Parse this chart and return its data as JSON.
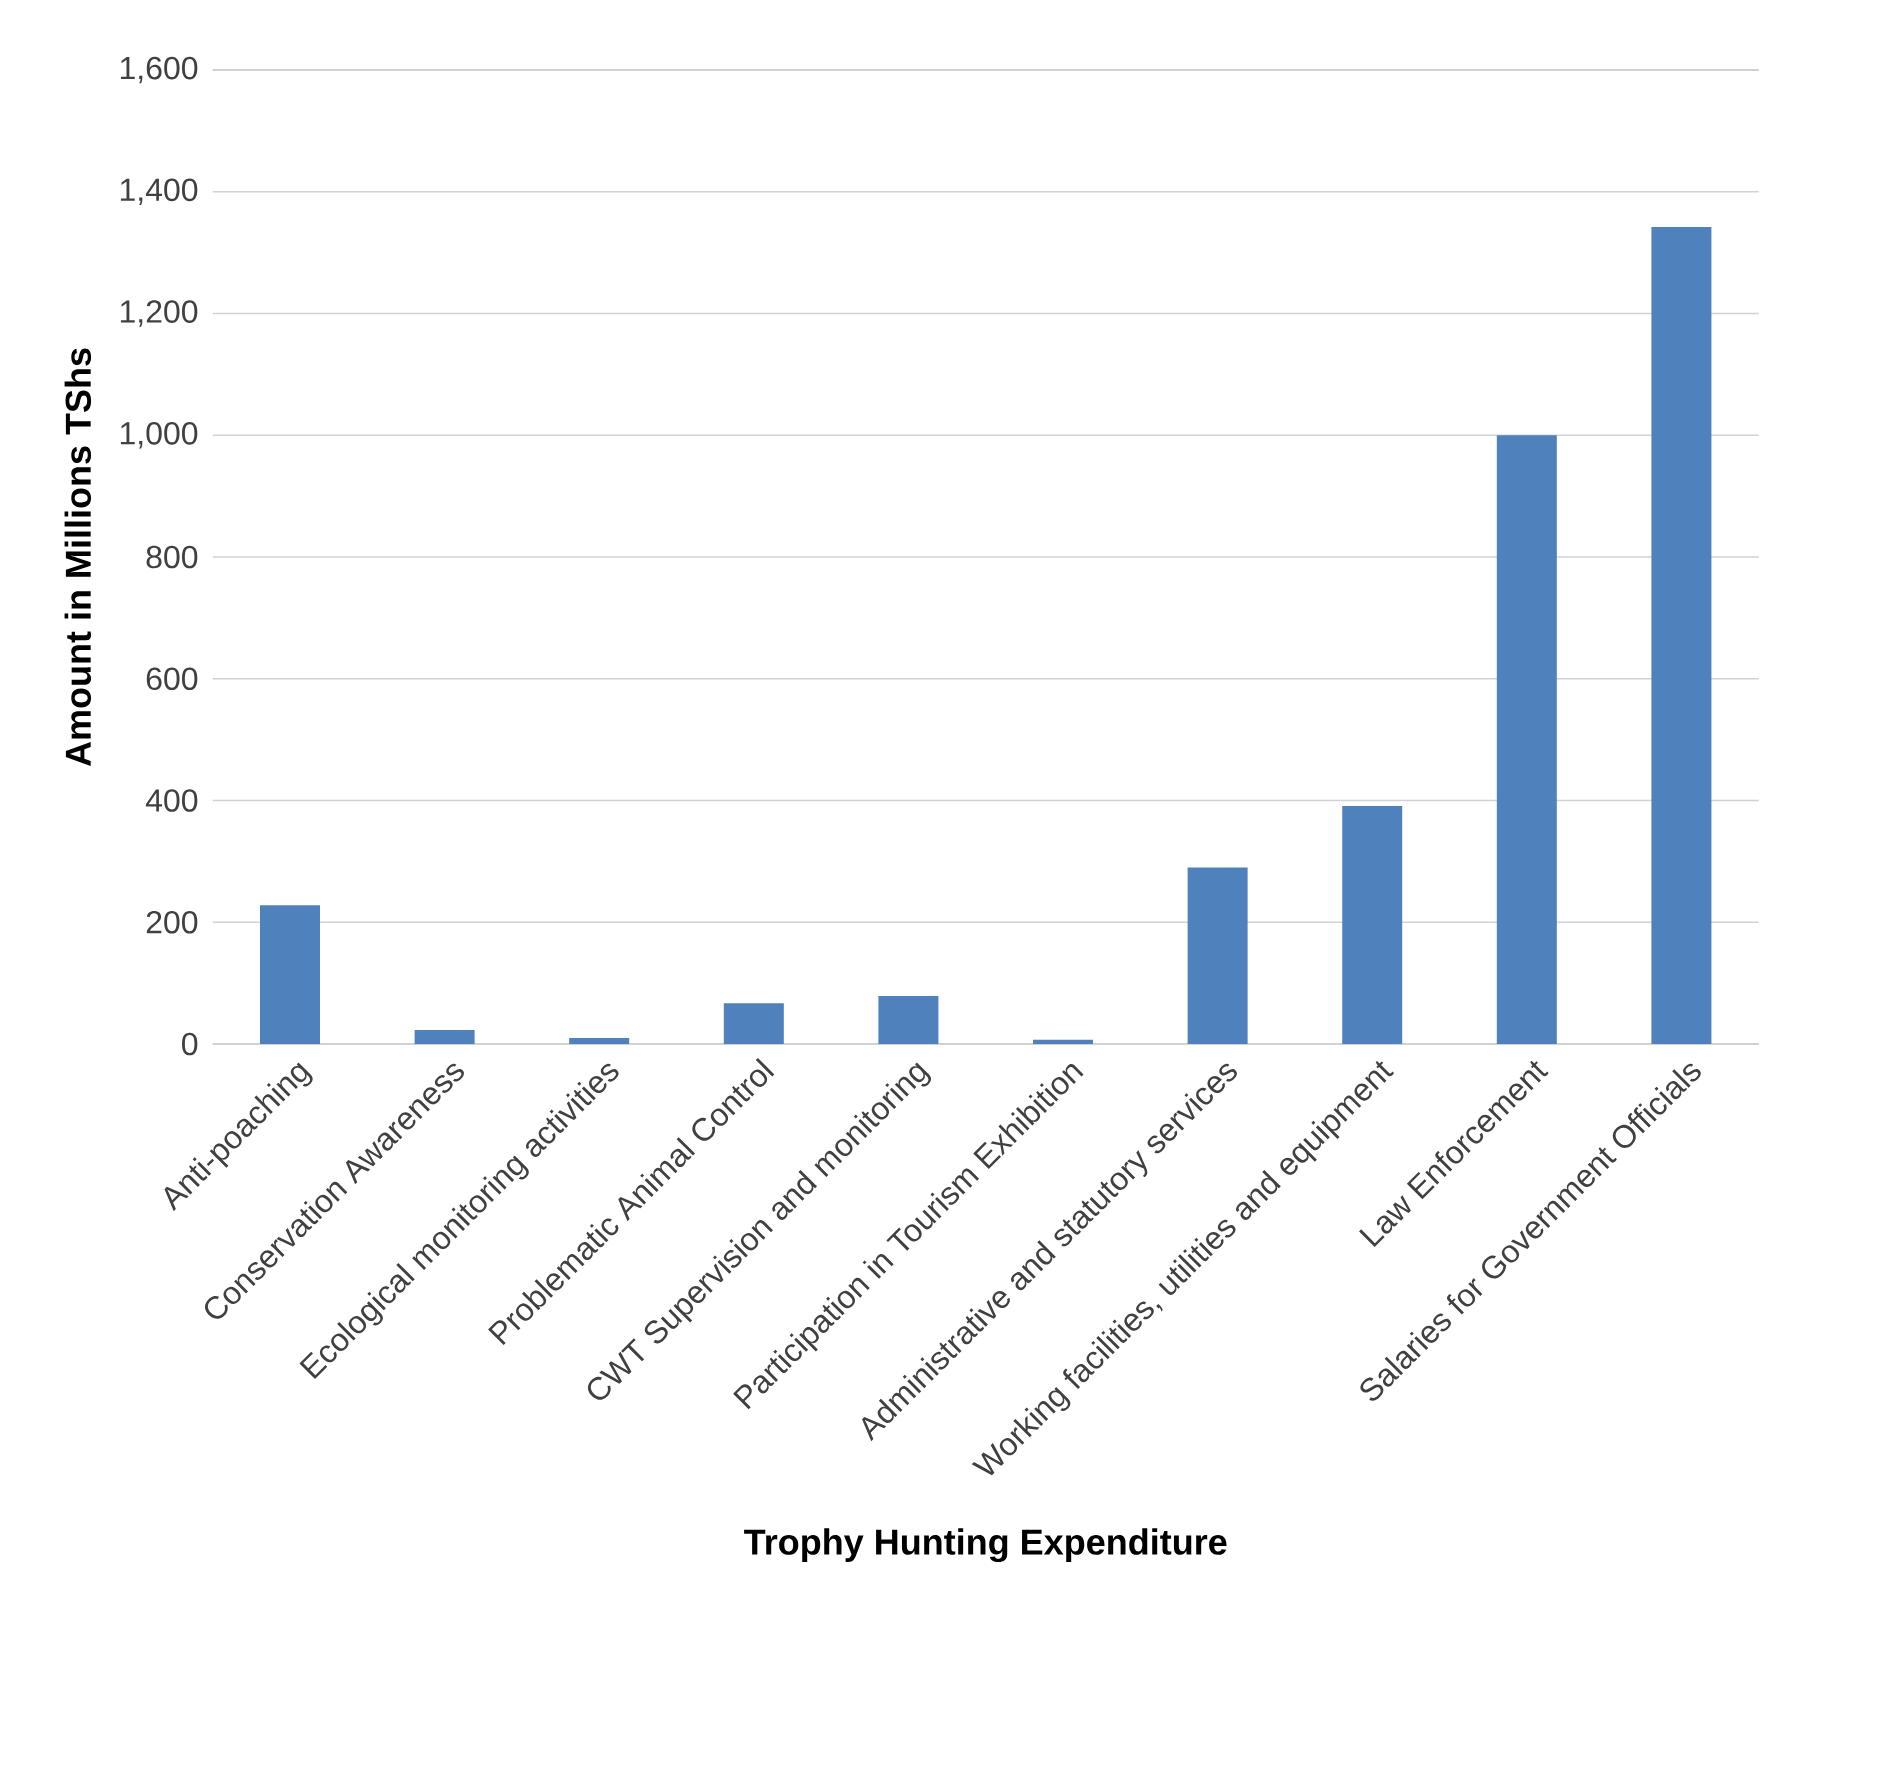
{
  "chart_data": {
    "type": "bar",
    "xlabel": "Trophy Hunting Expenditure",
    "ylabel": "Amount in Millions TShs",
    "categories": [
      "Anti-poaching",
      "Conservation Awareness",
      "Ecological monitoring activities",
      "Problematic Animal Control",
      "CWT Supervision and monitoring",
      "Participation in Tourism Exhibition",
      "Administrative and statutory services",
      "Working facilities, utilities and equipment",
      "Law Enforcement",
      "Salaries for Government Officials"
    ],
    "values": [
      228,
      23,
      10,
      67,
      79,
      7,
      290,
      391,
      1000,
      1342
    ],
    "color": "#4f81bd",
    "ylim": [
      0,
      1600
    ],
    "yticks": [
      {
        "value": 0,
        "label": "0"
      },
      {
        "value": 200,
        "label": "200"
      },
      {
        "value": 400,
        "label": "400"
      },
      {
        "value": 600,
        "label": "600"
      },
      {
        "value": 800,
        "label": "800"
      },
      {
        "value": 1000,
        "label": "1,000"
      },
      {
        "value": 1200,
        "label": "1,200"
      },
      {
        "value": 1400,
        "label": "1,400"
      },
      {
        "value": 1600,
        "label": "1,600"
      }
    ],
    "grid": "y"
  }
}
